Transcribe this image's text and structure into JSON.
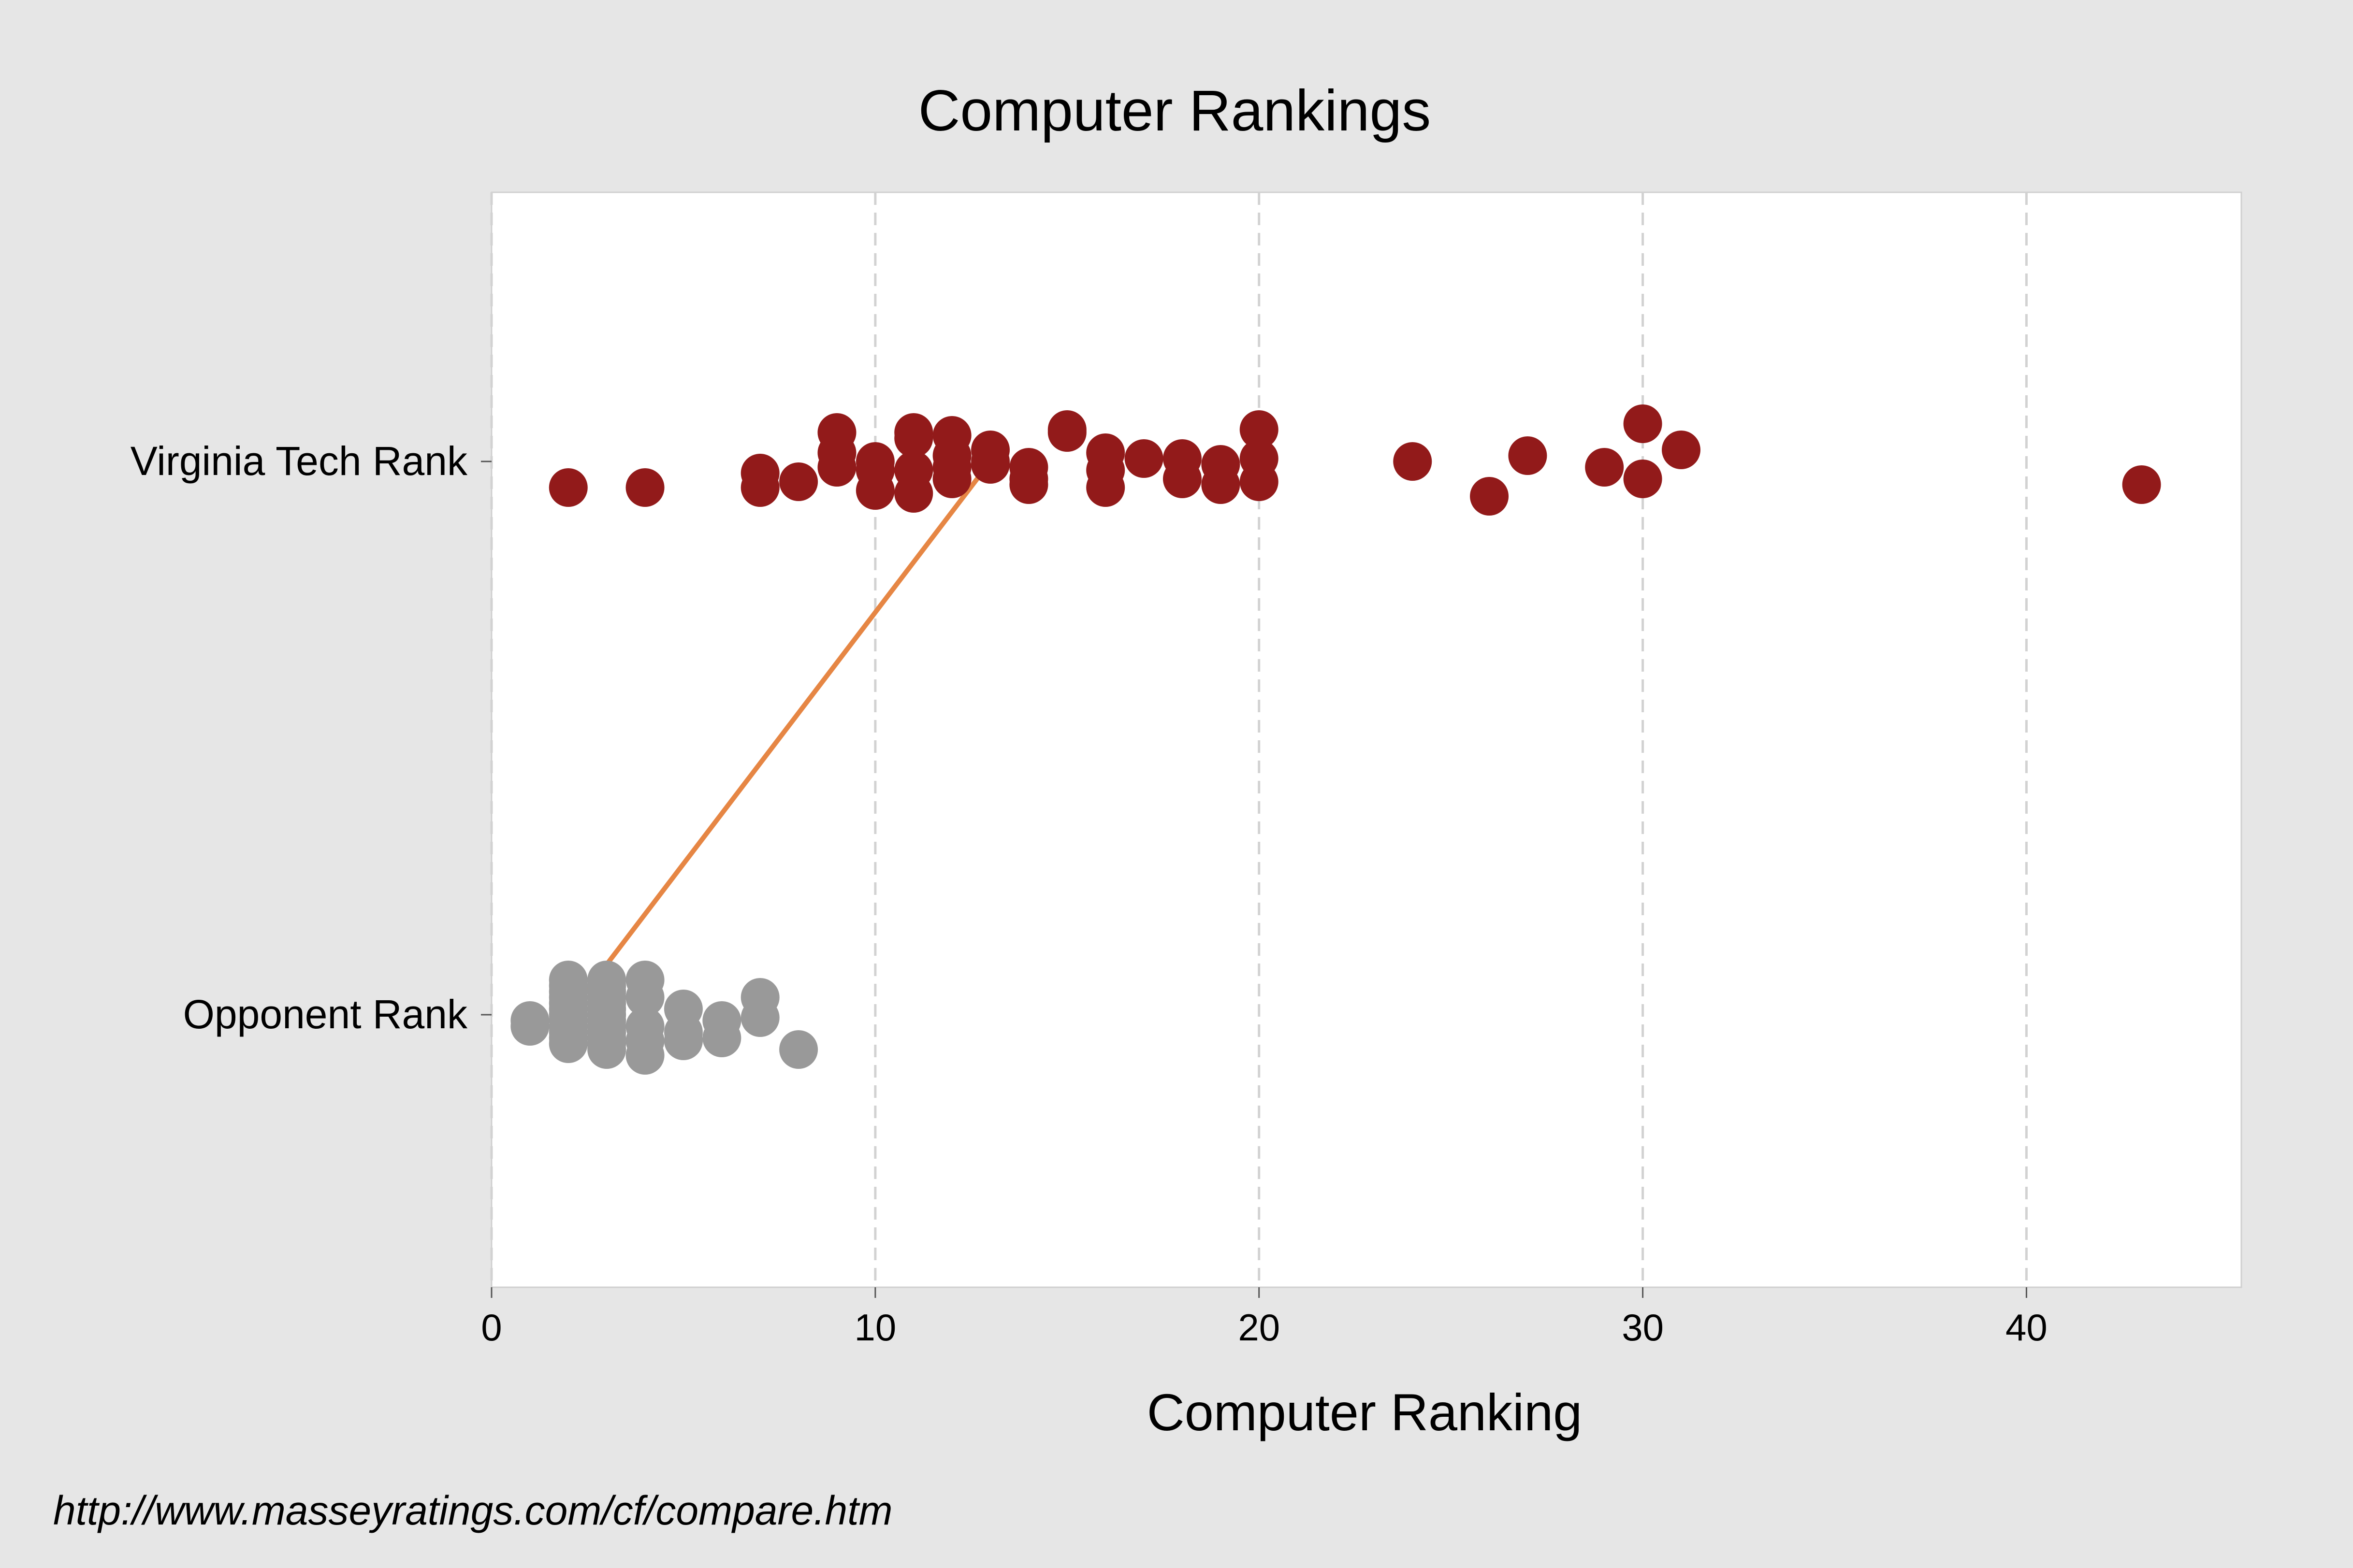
{
  "chart_data": {
    "type": "scatter",
    "title": "Computer Rankings",
    "xlabel": "Computer Ranking",
    "ylabel": "",
    "xlim": [
      0,
      45.6
    ],
    "xticks": [
      0,
      10,
      20,
      30,
      40
    ],
    "categories": [
      "Virginia Tech Rank",
      "Opponent Rank"
    ],
    "grid": "vertical dashed",
    "series": [
      {
        "category": "Virginia Tech Rank",
        "color": "#921a1a",
        "points": [
          {
            "x": 2,
            "y": -0.9
          },
          {
            "x": 4,
            "y": -0.9
          },
          {
            "x": 7,
            "y": -0.9
          },
          {
            "x": 7,
            "y": -0.4
          },
          {
            "x": 8,
            "y": -0.7
          },
          {
            "x": 9,
            "y": 1.0
          },
          {
            "x": 9,
            "y": 0.3
          },
          {
            "x": 9,
            "y": -0.2
          },
          {
            "x": 10,
            "y": -1.0
          },
          {
            "x": 10,
            "y": -0.3
          },
          {
            "x": 10,
            "y": 0.0
          },
          {
            "x": 11,
            "y": 1.0
          },
          {
            "x": 11,
            "y": 0.8
          },
          {
            "x": 11,
            "y": -0.3
          },
          {
            "x": 11,
            "y": -1.1
          },
          {
            "x": 12,
            "y": 0.9
          },
          {
            "x": 12,
            "y": 0.2
          },
          {
            "x": 12,
            "y": -0.2
          },
          {
            "x": 12,
            "y": -0.6
          },
          {
            "x": 13,
            "y": 0.4
          },
          {
            "x": 13,
            "y": 0.0
          },
          {
            "x": 13,
            "y": -0.1
          },
          {
            "x": 14,
            "y": -0.2
          },
          {
            "x": 14,
            "y": -0.6
          },
          {
            "x": 14,
            "y": -0.8
          },
          {
            "x": 15,
            "y": 1.0
          },
          {
            "x": 15,
            "y": 1.1
          },
          {
            "x": 16,
            "y": 0.3
          },
          {
            "x": 16,
            "y": -0.3
          },
          {
            "x": 16,
            "y": -0.9
          },
          {
            "x": 17,
            "y": 0.1
          },
          {
            "x": 18,
            "y": 0.1
          },
          {
            "x": 18,
            "y": -0.6
          },
          {
            "x": 19,
            "y": -0.1
          },
          {
            "x": 19,
            "y": -0.8
          },
          {
            "x": 20,
            "y": 1.1
          },
          {
            "x": 20,
            "y": 0.1
          },
          {
            "x": 20,
            "y": -0.7
          },
          {
            "x": 24,
            "y": 0.0
          },
          {
            "x": 26,
            "y": -1.2
          },
          {
            "x": 27,
            "y": 0.2
          },
          {
            "x": 29,
            "y": -0.2
          },
          {
            "x": 30,
            "y": 1.3
          },
          {
            "x": 30,
            "y": -0.6
          },
          {
            "x": 31,
            "y": 0.4
          },
          {
            "x": 43,
            "y": -0.8
          }
        ]
      },
      {
        "category": "Opponent Rank",
        "color": "#999999",
        "points": [
          {
            "x": 1,
            "y": -0.2
          },
          {
            "x": 1,
            "y": -0.4
          },
          {
            "x": 2,
            "y": 1.2
          },
          {
            "x": 2,
            "y": 1.0
          },
          {
            "x": 2,
            "y": 0.8
          },
          {
            "x": 2,
            "y": 0.6
          },
          {
            "x": 2,
            "y": 0.4
          },
          {
            "x": 2,
            "y": 0.2
          },
          {
            "x": 2,
            "y": 0.0
          },
          {
            "x": 2,
            "y": -0.2
          },
          {
            "x": 2,
            "y": -0.4
          },
          {
            "x": 2,
            "y": -0.6
          },
          {
            "x": 2,
            "y": -0.8
          },
          {
            "x": 2,
            "y": -1.0
          },
          {
            "x": 3,
            "y": 1.2
          },
          {
            "x": 3,
            "y": 1.0
          },
          {
            "x": 3,
            "y": 0.8
          },
          {
            "x": 3,
            "y": 0.6
          },
          {
            "x": 3,
            "y": 0.4
          },
          {
            "x": 3,
            "y": 0.2
          },
          {
            "x": 3,
            "y": 0.0
          },
          {
            "x": 3,
            "y": -0.2
          },
          {
            "x": 3,
            "y": -0.4
          },
          {
            "x": 3,
            "y": -0.6
          },
          {
            "x": 3,
            "y": -0.8
          },
          {
            "x": 3,
            "y": -1.0
          },
          {
            "x": 3,
            "y": -1.2
          },
          {
            "x": 4,
            "y": 1.2
          },
          {
            "x": 4,
            "y": 0.6
          },
          {
            "x": 4,
            "y": -0.4
          },
          {
            "x": 4,
            "y": -0.9
          },
          {
            "x": 4,
            "y": -1.4
          },
          {
            "x": 5,
            "y": 0.2
          },
          {
            "x": 5,
            "y": -0.6
          },
          {
            "x": 5,
            "y": -0.9
          },
          {
            "x": 6,
            "y": -0.2
          },
          {
            "x": 6,
            "y": -0.8
          },
          {
            "x": 7,
            "y": 0.6
          },
          {
            "x": 7,
            "y": -0.1
          },
          {
            "x": 8,
            "y": -1.2
          }
        ]
      }
    ],
    "connector": {
      "from": 2,
      "to": 13,
      "color": "#e68644"
    }
  },
  "footer": {
    "source_url": "http://www.masseyratings.com/cf/compare.htm"
  }
}
